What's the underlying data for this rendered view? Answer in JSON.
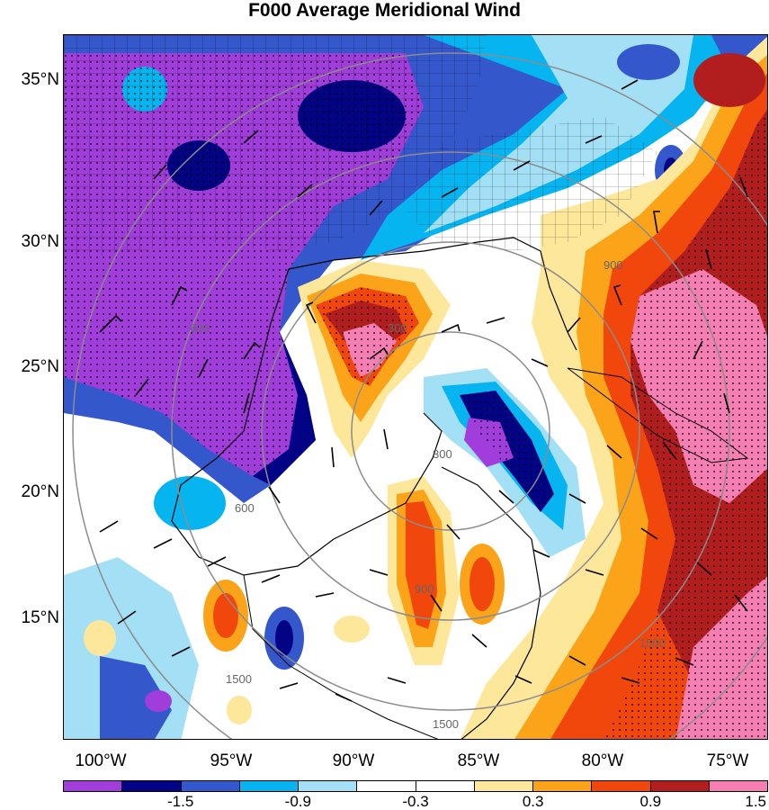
{
  "title": "F000 Average Meridional Wind",
  "latitudes": [
    "35°N",
    "30°N",
    "25°N",
    "20°N",
    "15°N"
  ],
  "longitudes": [
    "100°W",
    "95°W",
    "90°W",
    "85°W",
    "80°W",
    "75°W"
  ],
  "colorbar": {
    "colors": [
      "#a13ddb",
      "#030386",
      "#3557cc",
      "#06b4f0",
      "#a3dff5",
      "#ffffff",
      "#ffffff",
      "#fde79a",
      "#fba41a",
      "#f2470c",
      "#b21e1e",
      "#f57fb2"
    ],
    "labels": [
      "-1.5",
      "-0.9",
      "-0.3",
      "0.3",
      "0.9",
      "1.5"
    ]
  },
  "range_ring_labels": [
    "300",
    "600",
    "900",
    "1500"
  ]
}
